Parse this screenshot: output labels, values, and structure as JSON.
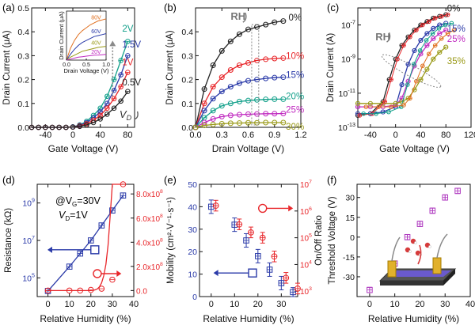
{
  "panels": {
    "a": {
      "letter": "(a)"
    },
    "b": {
      "letter": "(b)"
    },
    "c": {
      "letter": "(c)"
    },
    "d": {
      "letter": "(d)",
      "cond_line1": "@V",
      "cond_sub": "G",
      "cond_val1": "=30V",
      "cond_line2": "V",
      "cond_sub2": "D",
      "cond_val2": "=1V"
    },
    "e": {
      "letter": "(e)"
    },
    "f": {
      "letter": "(f)"
    }
  },
  "colors": {
    "black": "#222222",
    "red": "#e8262a",
    "blue": "#2a3aa8",
    "teal": "#12a08a",
    "magenta": "#c02ac0",
    "olive": "#9a9a18",
    "purple": "#b03cc0",
    "gray_arrow": "#8a8a8a"
  },
  "chart_data": [
    {
      "id": "a",
      "type": "line",
      "xlabel": "Gate Voltage (V)",
      "ylabel": "Drain Current (μA)",
      "xlim": [
        -60,
        90
      ],
      "ylim": [
        0,
        0.5
      ],
      "xticks": [
        -40,
        0,
        40,
        80
      ],
      "yticks": [
        0.0,
        0.1,
        0.2,
        0.3,
        0.4,
        0.5
      ],
      "series": [
        {
          "name": "2V",
          "color": "#12a08a",
          "x": [
            -60,
            -50,
            -40,
            -30,
            -20,
            -10,
            0,
            10,
            20,
            30,
            40,
            50,
            60,
            70,
            80
          ],
          "y": [
            0,
            0,
            0,
            0,
            0,
            0,
            0.002,
            0.01,
            0.025,
            0.05,
            0.08,
            0.13,
            0.2,
            0.28,
            0.36
          ]
        },
        {
          "name": "1.5V",
          "color": "#2a3aa8",
          "x": [
            -60,
            -50,
            -40,
            -30,
            -20,
            -10,
            0,
            10,
            20,
            30,
            40,
            50,
            60,
            70,
            80
          ],
          "y": [
            0,
            0,
            0,
            0,
            0,
            0,
            0.002,
            0.008,
            0.02,
            0.04,
            0.065,
            0.1,
            0.155,
            0.22,
            0.3
          ]
        },
        {
          "name": "1V",
          "color": "#e8262a",
          "x": [
            -60,
            -50,
            -40,
            -30,
            -20,
            -10,
            0,
            10,
            20,
            30,
            40,
            50,
            60,
            70,
            80
          ],
          "y": [
            0,
            0,
            0,
            0,
            0,
            0,
            0.001,
            0.006,
            0.015,
            0.03,
            0.05,
            0.08,
            0.12,
            0.17,
            0.23
          ]
        },
        {
          "name": "0.5V",
          "color": "#222222",
          "x": [
            -60,
            -50,
            -40,
            -30,
            -20,
            -10,
            0,
            10,
            20,
            30,
            40,
            50,
            60,
            70,
            80
          ],
          "y": [
            0,
            0,
            0,
            0,
            0,
            0,
            0.001,
            0.004,
            0.01,
            0.02,
            0.035,
            0.055,
            0.08,
            0.11,
            0.15
          ]
        }
      ],
      "annotations": [
        "V",
        "D"
      ],
      "inset": {
        "xlabel": "Drain Voltage (V)",
        "ylabel": "Drain Current (μA)",
        "xlim": [
          0,
          1
        ],
        "ylim": [
          0,
          0.5
        ],
        "xticks": [
          0.0,
          0.5,
          1.0
        ],
        "series": [
          {
            "name": "80V",
            "color": "#e07020",
            "x": [
              0,
              0.1,
              0.2,
              0.3,
              0.4,
              0.5,
              0.6,
              0.7,
              0.8,
              0.9,
              1.0
            ],
            "y": [
              0,
              0.12,
              0.2,
              0.26,
              0.3,
              0.33,
              0.36,
              0.38,
              0.4,
              0.41,
              0.42
            ]
          },
          {
            "name": "60V",
            "color": "#2a3aa8",
            "x": [
              0,
              0.1,
              0.2,
              0.3,
              0.4,
              0.5,
              0.6,
              0.7,
              0.8,
              0.9,
              1.0
            ],
            "y": [
              0,
              0.06,
              0.11,
              0.15,
              0.18,
              0.2,
              0.22,
              0.24,
              0.25,
              0.26,
              0.27
            ]
          },
          {
            "name": "40V",
            "color": "#9a9a18",
            "x": [
              0,
              0.1,
              0.2,
              0.3,
              0.4,
              0.5,
              0.6,
              0.7,
              0.8,
              0.9,
              1.0
            ],
            "y": [
              0,
              0.03,
              0.05,
              0.07,
              0.09,
              0.1,
              0.11,
              0.12,
              0.13,
              0.135,
              0.14
            ]
          },
          {
            "name": "20V",
            "color": "#c02ac0",
            "x": [
              0,
              0.1,
              0.2,
              0.3,
              0.4,
              0.5,
              0.6,
              0.7,
              0.8,
              0.9,
              1.0
            ],
            "y": [
              0,
              0.01,
              0.02,
              0.03,
              0.035,
              0.04,
              0.045,
              0.05,
              0.052,
              0.055,
              0.058
            ]
          }
        ]
      }
    },
    {
      "id": "b",
      "type": "line",
      "xlabel": "Drain Voltage (V)",
      "ylabel": "Drain Current (μA)",
      "xlim": [
        0,
        1.2
      ],
      "ylim": [
        0,
        0.5
      ],
      "xticks": [
        0.0,
        0.3,
        0.6,
        0.9,
        1.2
      ],
      "yticks": [
        0.0,
        0.1,
        0.2,
        0.3,
        0.4
      ],
      "series": [
        {
          "name": "0%",
          "color": "#222222",
          "x": [
            0,
            0.1,
            0.2,
            0.3,
            0.4,
            0.5,
            0.6,
            0.7,
            0.8,
            0.9,
            1.0
          ],
          "y": [
            0,
            0.16,
            0.26,
            0.32,
            0.36,
            0.39,
            0.41,
            0.42,
            0.43,
            0.44,
            0.445
          ]
        },
        {
          "name": "10%",
          "color": "#e8262a",
          "x": [
            0,
            0.1,
            0.2,
            0.3,
            0.4,
            0.5,
            0.6,
            0.7,
            0.8,
            0.9,
            1.0
          ],
          "y": [
            0,
            0.1,
            0.17,
            0.21,
            0.24,
            0.26,
            0.27,
            0.28,
            0.285,
            0.288,
            0.29
          ]
        },
        {
          "name": "15%",
          "color": "#2a3aa8",
          "x": [
            0,
            0.1,
            0.2,
            0.3,
            0.4,
            0.5,
            0.6,
            0.7,
            0.8,
            0.9,
            1.0
          ],
          "y": [
            0,
            0.07,
            0.12,
            0.15,
            0.17,
            0.185,
            0.195,
            0.2,
            0.205,
            0.208,
            0.21
          ]
        },
        {
          "name": "20%",
          "color": "#12a08a",
          "x": [
            0,
            0.1,
            0.2,
            0.3,
            0.4,
            0.5,
            0.6,
            0.7,
            0.8,
            0.9,
            1.0
          ],
          "y": [
            0,
            0.04,
            0.07,
            0.09,
            0.1,
            0.108,
            0.112,
            0.115,
            0.117,
            0.118,
            0.118
          ]
        },
        {
          "name": "25%",
          "color": "#c02ac0",
          "x": [
            0,
            0.1,
            0.2,
            0.3,
            0.4,
            0.5,
            0.6,
            0.7,
            0.8,
            0.9,
            1.0
          ],
          "y": [
            0,
            0.02,
            0.035,
            0.045,
            0.05,
            0.053,
            0.055,
            0.056,
            0.057,
            0.057,
            0.058
          ]
        },
        {
          "name": "30%",
          "color": "#9a9a18",
          "x": [
            0,
            0.1,
            0.2,
            0.3,
            0.4,
            0.5,
            0.6,
            0.7,
            0.8,
            0.9,
            1.0
          ],
          "y": [
            0,
            0.008,
            0.012,
            0.015,
            0.017,
            0.018,
            0.019,
            0.019,
            0.02,
            0.02,
            0.02
          ]
        }
      ],
      "annotations": [
        "RH"
      ]
    },
    {
      "id": "c",
      "type": "line",
      "xlabel": "Gate Voltage (V)",
      "ylabel": "Drain Current (A)",
      "xlim": [
        -60,
        120
      ],
      "ylim_log10": [
        -13,
        -6
      ],
      "xticks": [
        -40,
        0,
        40,
        80,
        120
      ],
      "yticks": [
        -13,
        -11,
        -9,
        -7
      ],
      "ytick_labels": [
        "10",
        "10",
        "10",
        "10"
      ],
      "ytick_exps": [
        "-13",
        "-11",
        "-9",
        "-7"
      ],
      "series": [
        {
          "name": "0%",
          "color": "#222222",
          "x": [
            -60,
            -40,
            -20,
            -10,
            0,
            10,
            20,
            30,
            40,
            50,
            60,
            70,
            80
          ],
          "log_y": [
            -12.3,
            -12.2,
            -11.5,
            -10.2,
            -9.0,
            -8.2,
            -7.7,
            -7.3,
            -7.0,
            -6.8,
            -6.6,
            -6.5,
            -6.4
          ]
        },
        {
          "name": "15%",
          "color": "#2a3aa8",
          "x": [
            -60,
            -40,
            -20,
            0,
            10,
            20,
            30,
            40,
            50,
            60,
            70,
            80
          ],
          "log_y": [
            -12.2,
            -12.2,
            -12.1,
            -11.8,
            -10.5,
            -9.3,
            -8.5,
            -7.9,
            -7.5,
            -7.2,
            -7.0,
            -6.9
          ]
        },
        {
          "name": "25%",
          "color": "#c02ac0",
          "x": [
            -60,
            -40,
            -20,
            0,
            10,
            20,
            30,
            40,
            50,
            60,
            70,
            80
          ],
          "log_y": [
            -11.8,
            -11.8,
            -11.8,
            -11.7,
            -11.3,
            -10.3,
            -9.4,
            -8.7,
            -8.2,
            -7.8,
            -7.5,
            -7.3
          ]
        },
        {
          "name": "35%",
          "color": "#9a9a18",
          "x": [
            -60,
            -40,
            -20,
            0,
            10,
            20,
            30,
            40,
            50,
            60,
            70,
            80
          ],
          "log_y": [
            -11.6,
            -11.6,
            -11.6,
            -11.6,
            -11.5,
            -11.3,
            -10.8,
            -10.2,
            -9.6,
            -9.0,
            -8.6,
            -8.3
          ]
        }
      ],
      "annotations": [
        "RH"
      ]
    },
    {
      "id": "d",
      "type": "line",
      "xlabel": "Relative Humidity (%)",
      "ylabel_left": "Resistance (kΩ)",
      "ylabel_right": "Resistance (kΩ)",
      "xlim": [
        -5,
        40
      ],
      "xticks": [
        0,
        10,
        20,
        30,
        40
      ],
      "left_log10_lim": [
        4,
        10
      ],
      "left_yticks": [
        5,
        7,
        9
      ],
      "left_tick_labels": [
        "10",
        "10",
        "10"
      ],
      "left_tick_exps": [
        "5",
        "7",
        "9"
      ],
      "right_ylim": [
        -0.5,
        8.8
      ],
      "right_yticks": [
        0,
        2,
        4,
        6,
        8
      ],
      "right_tick_labels": [
        "0.0",
        "2.0x10",
        "4.0x10",
        "6.0x10",
        "8.0x10"
      ],
      "right_tick_exps": [
        "",
        "8",
        "8",
        "8",
        "8"
      ],
      "series": [
        {
          "name": "log",
          "color": "#2a3aa8",
          "axis": "left",
          "x": [
            0,
            10,
            15,
            20,
            25,
            30,
            35
          ],
          "log_y": [
            4.3,
            5.6,
            6.3,
            7.0,
            7.8,
            8.6,
            9.4
          ]
        },
        {
          "name": "linear",
          "color": "#e8262a",
          "axis": "right",
          "x": [
            0,
            10,
            15,
            20,
            25,
            30,
            35
          ],
          "y": [
            0.0,
            0.0,
            0.0,
            0.05,
            0.15,
            0.9,
            8.8
          ]
        }
      ]
    },
    {
      "id": "e",
      "type": "scatter",
      "xlabel": "Relative Humidity (%)",
      "ylabel_left": "Mobility (cm²·V⁻¹·s⁻¹)",
      "ylabel_right": "On/Off Ratio",
      "xlim": [
        -5,
        37
      ],
      "xticks": [
        0,
        10,
        20,
        30
      ],
      "left_ylim": [
        0,
        50
      ],
      "left_yticks": [
        0,
        10,
        20,
        30,
        40,
        50
      ],
      "right_log10_lim": [
        2.8,
        7
      ],
      "right_yticks": [
        3,
        4,
        5,
        6,
        7
      ],
      "right_tick_labels": [
        "10",
        "10",
        "10",
        "10",
        "10"
      ],
      "right_tick_exps": [
        "3",
        "4",
        "5",
        "6",
        "7"
      ],
      "series": [
        {
          "name": "mobility",
          "color": "#2a3aa8",
          "axis": "left",
          "x": [
            0,
            10,
            15,
            20,
            25,
            30,
            35
          ],
          "y": [
            40,
            32,
            25,
            18,
            12,
            6,
            2
          ],
          "err": [
            3,
            3,
            3,
            3,
            3,
            3,
            2
          ]
        },
        {
          "name": "onoff",
          "color": "#e8262a",
          "axis": "right",
          "x": [
            2,
            12,
            17,
            22,
            27,
            32,
            37
          ],
          "log_y": [
            6.2,
            5.5,
            5.2,
            5.0,
            4.3,
            3.5,
            3.1
          ],
          "err": [
            0.2,
            0.2,
            0.2,
            0.2,
            0.2,
            0.2,
            0.2
          ]
        }
      ]
    },
    {
      "id": "f",
      "type": "scatter",
      "xlabel": "Relative Humidity (%)",
      "ylabel": "Threshold Voltage (V)",
      "xlim": [
        -5,
        40
      ],
      "ylim": [
        -45,
        40
      ],
      "xticks": [
        0,
        10,
        20,
        30,
        40
      ],
      "yticks": [
        -30,
        -15,
        0,
        15,
        30
      ],
      "series": [
        {
          "name": "vth",
          "color": "#b03cc0",
          "x": [
            0,
            10,
            15,
            20,
            25,
            30,
            35
          ],
          "y": [
            -40,
            -20,
            0,
            10,
            20,
            30,
            35
          ],
          "err": [
            2,
            2,
            2,
            2,
            2,
            2,
            2
          ]
        }
      ]
    }
  ]
}
